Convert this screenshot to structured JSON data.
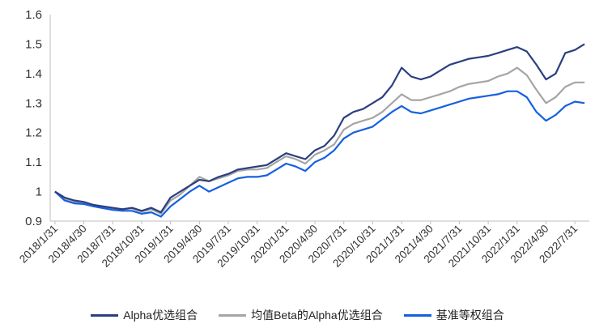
{
  "chart_data": {
    "type": "line",
    "title": "",
    "xlabel": "",
    "ylabel": "",
    "ylim": [
      0.9,
      1.6
    ],
    "yticks": [
      "0.9",
      "1",
      "1.1",
      "1.2",
      "1.3",
      "1.4",
      "1.5",
      "1.6"
    ],
    "xticks": [
      "2018/1/31",
      "2018/4/30",
      "2018/7/31",
      "2018/10/31",
      "2019/1/31",
      "2019/4/30",
      "2019/7/31",
      "2019/10/31",
      "2020/1/31",
      "2020/4/30",
      "2020/7/31",
      "2020/10/31",
      "2021/1/31",
      "2021/4/30",
      "2021/7/31",
      "2021/10/31",
      "2022/1/31",
      "2022/4/30",
      "2022/7/31"
    ],
    "x": [
      "2018/1/31",
      "2018/2/28",
      "2018/3/31",
      "2018/4/30",
      "2018/5/31",
      "2018/6/30",
      "2018/7/31",
      "2018/8/31",
      "2018/9/30",
      "2018/10/31",
      "2018/11/30",
      "2018/12/31",
      "2019/1/31",
      "2019/2/28",
      "2019/3/31",
      "2019/4/30",
      "2019/5/31",
      "2019/6/30",
      "2019/7/31",
      "2019/8/31",
      "2019/9/30",
      "2019/10/31",
      "2019/11/30",
      "2019/12/31",
      "2020/1/31",
      "2020/2/29",
      "2020/3/31",
      "2020/4/30",
      "2020/5/31",
      "2020/6/30",
      "2020/7/31",
      "2020/8/31",
      "2020/9/30",
      "2020/10/31",
      "2020/11/30",
      "2020/12/31",
      "2021/1/31",
      "2021/2/28",
      "2021/3/31",
      "2021/4/30",
      "2021/5/31",
      "2021/6/30",
      "2021/7/31",
      "2021/8/31",
      "2021/9/30",
      "2021/10/31",
      "2021/11/30",
      "2021/12/31",
      "2022/1/31",
      "2022/2/28",
      "2022/3/31",
      "2022/4/30",
      "2022/5/31",
      "2022/6/30",
      "2022/7/31",
      "2022/8/31"
    ],
    "series": [
      {
        "name": "Alpha优选组合",
        "color": "#2b3f7f",
        "values": [
          1.0,
          0.98,
          0.97,
          0.965,
          0.955,
          0.95,
          0.945,
          0.94,
          0.945,
          0.935,
          0.945,
          0.93,
          0.98,
          1.0,
          1.02,
          1.04,
          1.035,
          1.05,
          1.06,
          1.075,
          1.08,
          1.085,
          1.09,
          1.11,
          1.13,
          1.12,
          1.11,
          1.14,
          1.155,
          1.19,
          1.25,
          1.27,
          1.28,
          1.3,
          1.32,
          1.36,
          1.42,
          1.39,
          1.38,
          1.39,
          1.41,
          1.43,
          1.44,
          1.45,
          1.455,
          1.46,
          1.47,
          1.48,
          1.49,
          1.475,
          1.43,
          1.38,
          1.4,
          1.47,
          1.48,
          1.5
        ]
      },
      {
        "name": "均值Beta的Alpha优选组合",
        "color": "#a5a5a5",
        "values": [
          1.0,
          0.975,
          0.965,
          0.962,
          0.955,
          0.948,
          0.942,
          0.94,
          0.943,
          0.932,
          0.94,
          0.925,
          0.97,
          0.99,
          1.02,
          1.05,
          1.035,
          1.045,
          1.055,
          1.07,
          1.075,
          1.075,
          1.08,
          1.1,
          1.12,
          1.11,
          1.095,
          1.125,
          1.14,
          1.16,
          1.21,
          1.23,
          1.24,
          1.25,
          1.27,
          1.3,
          1.33,
          1.31,
          1.31,
          1.32,
          1.33,
          1.34,
          1.355,
          1.365,
          1.37,
          1.375,
          1.39,
          1.4,
          1.42,
          1.395,
          1.345,
          1.3,
          1.32,
          1.355,
          1.37,
          1.37
        ]
      },
      {
        "name": "基准等权组合",
        "color": "#1560e0",
        "values": [
          1.0,
          0.97,
          0.96,
          0.958,
          0.95,
          0.944,
          0.938,
          0.935,
          0.935,
          0.925,
          0.93,
          0.915,
          0.95,
          0.975,
          1.0,
          1.02,
          1.0,
          1.015,
          1.03,
          1.045,
          1.05,
          1.05,
          1.055,
          1.075,
          1.095,
          1.085,
          1.07,
          1.1,
          1.115,
          1.14,
          1.18,
          1.2,
          1.21,
          1.22,
          1.245,
          1.27,
          1.29,
          1.27,
          1.265,
          1.275,
          1.285,
          1.295,
          1.305,
          1.315,
          1.32,
          1.325,
          1.33,
          1.34,
          1.34,
          1.32,
          1.27,
          1.24,
          1.26,
          1.29,
          1.305,
          1.3
        ]
      }
    ],
    "grid": false,
    "legend_position": "bottom"
  },
  "legend": [
    {
      "label": "Alpha优选组合",
      "color": "#2b3f7f"
    },
    {
      "label": "均值Beta的Alpha优选组合",
      "color": "#a5a5a5"
    },
    {
      "label": "基准等权组合",
      "color": "#1560e0"
    }
  ]
}
